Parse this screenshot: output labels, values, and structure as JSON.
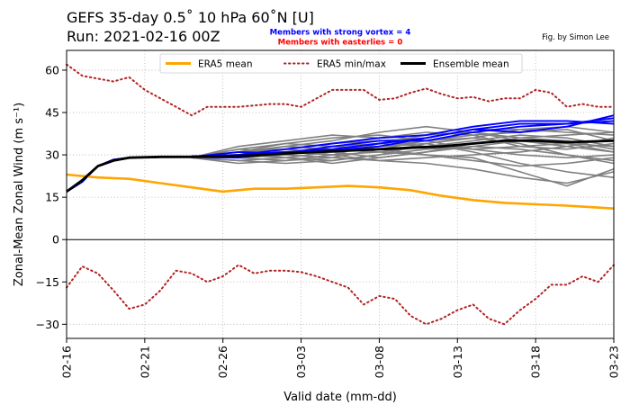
{
  "header": {
    "title_line1": "GEFS 35-day 0.5˚ 10 hPa 60˚N [U]",
    "title_line2": "Run: 2021-02-16 00Z",
    "strong_vortex_note": "Members with strong vortex = 4",
    "easterlies_note": "Members with easterlies = 0",
    "credit": "Fig. by Simon Lee"
  },
  "colors": {
    "era5_mean": "#ffa500",
    "era5_minmax": "#b22222",
    "ensemble_mean": "#000000",
    "strong_vortex_members": "#0000ff",
    "other_members": "#808080",
    "strong_vortex_note": "#0000ff",
    "easterlies_note": "#ff0000"
  },
  "chart_data": {
    "type": "line",
    "title": "GEFS 35-day 0.5˚ 10 hPa 60˚N [U]",
    "xlabel": "Valid date (mm-dd)",
    "ylabel": "Zonal-Mean Zonal Wind (m s⁻¹)",
    "x_start": "2021-02-16",
    "xlim": [
      "02-16",
      "03-23"
    ],
    "ylim": [
      -35,
      67
    ],
    "x_ticks": [
      "02-16",
      "02-21",
      "02-26",
      "03-03",
      "03-08",
      "03-13",
      "03-18",
      "03-23"
    ],
    "y_ticks": [
      -30,
      -15,
      0,
      15,
      30,
      45,
      60
    ],
    "grid": true,
    "legend_position": "top-center",
    "legend": [
      "ERA5 mean",
      "ERA5 min/max",
      "Ensemble mean"
    ],
    "series": [
      {
        "name": "ERA5 mean",
        "style": "solid",
        "x": [
          "02-16",
          "02-18",
          "02-20",
          "02-22",
          "02-24",
          "02-26",
          "02-28",
          "03-02",
          "03-04",
          "03-06",
          "03-08",
          "03-10",
          "03-12",
          "03-14",
          "03-16",
          "03-18",
          "03-20",
          "03-23"
        ],
        "y": [
          23,
          22,
          21.5,
          20,
          18.5,
          17,
          18,
          18,
          18.5,
          19,
          18.5,
          17.5,
          15.5,
          14,
          13,
          12.5,
          12,
          11
        ]
      },
      {
        "name": "ERA5 min/max",
        "style": "dotted",
        "x": [
          "02-16",
          "02-17",
          "02-18",
          "02-19",
          "02-20",
          "02-21",
          "02-22",
          "02-23",
          "02-24",
          "02-25",
          "02-26",
          "02-27",
          "02-28",
          "03-01",
          "03-02",
          "03-03",
          "03-04",
          "03-05",
          "03-06",
          "03-07",
          "03-08",
          "03-09",
          "03-10",
          "03-11",
          "03-12",
          "03-13",
          "03-14",
          "03-15",
          "03-16",
          "03-17",
          "03-18",
          "03-19",
          "03-20",
          "03-21",
          "03-22",
          "03-23"
        ],
        "y": [
          62,
          58,
          57,
          56,
          57.5,
          53,
          50,
          47,
          44,
          47,
          47,
          47,
          47.5,
          48,
          48,
          47,
          50,
          53,
          53,
          53,
          49.5,
          50,
          52,
          53.5,
          51.5,
          50,
          50.5,
          49,
          50,
          50,
          53,
          52,
          47,
          48,
          47,
          47
        ]
      },
      {
        "name": "ERA5 min/max",
        "style": "dotted",
        "x": [
          "02-16",
          "02-17",
          "02-18",
          "02-19",
          "02-20",
          "02-21",
          "02-22",
          "02-23",
          "02-24",
          "02-25",
          "02-26",
          "02-27",
          "02-28",
          "03-01",
          "03-02",
          "03-03",
          "03-04",
          "03-05",
          "03-06",
          "03-07",
          "03-08",
          "03-09",
          "03-10",
          "03-11",
          "03-12",
          "03-13",
          "03-14",
          "03-15",
          "03-16",
          "03-17",
          "03-18",
          "03-19",
          "03-20",
          "03-21",
          "03-22",
          "03-23"
        ],
        "y": [
          -17,
          -9.5,
          -12,
          -18,
          -24.5,
          -23,
          -18,
          -11,
          -12,
          -15,
          -13,
          -9,
          -12,
          -11,
          -11,
          -11.5,
          -13,
          -15,
          -17,
          -23,
          -20,
          -21,
          -27,
          -30,
          -28,
          -25,
          -23,
          -28,
          -30,
          -25,
          -21,
          -16,
          -16,
          -13,
          -15,
          -9
        ]
      },
      {
        "name": "Ensemble mean",
        "style": "solid",
        "x": [
          "02-16",
          "02-17",
          "02-18",
          "02-19",
          "02-20",
          "02-22",
          "02-24",
          "02-26",
          "02-28",
          "03-02",
          "03-04",
          "03-06",
          "03-08",
          "03-10",
          "03-12",
          "03-14",
          "03-16",
          "03-18",
          "03-20",
          "03-23"
        ],
        "y": [
          17,
          21,
          26,
          28,
          29,
          29.3,
          29.3,
          29.5,
          29.8,
          30.5,
          31,
          31.5,
          32,
          32.5,
          33,
          34,
          35,
          35,
          34.5,
          35
        ]
      }
    ],
    "member_start": {
      "x": [
        "02-16",
        "02-17",
        "02-18",
        "02-19",
        "02-20",
        "02-22",
        "02-24"
      ],
      "y": [
        17,
        20.5,
        26,
        28.3,
        29,
        29.2,
        29.2
      ]
    },
    "member_x": [
      "02-24",
      "02-27",
      "03-02",
      "03-05",
      "03-08",
      "03-11",
      "03-14",
      "03-17",
      "03-20",
      "03-23"
    ],
    "strong_vortex_members": [
      [
        29.3,
        31,
        30.5,
        33,
        35,
        35,
        38,
        40,
        41,
        43
      ],
      [
        29.5,
        30,
        32,
        34,
        36,
        37,
        40,
        42,
        42,
        41
      ],
      [
        29.2,
        29,
        31,
        32,
        34,
        36,
        39,
        38,
        40,
        44
      ],
      [
        29.4,
        30,
        31,
        31.5,
        33,
        36,
        39,
        41,
        41,
        42
      ]
    ],
    "other_members": [
      [
        29,
        32,
        34,
        36,
        37,
        35,
        32,
        30,
        29,
        30
      ],
      [
        29,
        29,
        30,
        29,
        28,
        27,
        25,
        22,
        20,
        24
      ],
      [
        29,
        30,
        33,
        35,
        38,
        40,
        38,
        35,
        33,
        31
      ],
      [
        29,
        28,
        27,
        28,
        30,
        32,
        33,
        32,
        30,
        28
      ],
      [
        29,
        31,
        29,
        27,
        29,
        31,
        34,
        36,
        37,
        38
      ],
      [
        29,
        33,
        35,
        37,
        36,
        38,
        37,
        33,
        32,
        34
      ],
      [
        29,
        28,
        29,
        31,
        33,
        34,
        31,
        27,
        24,
        22
      ],
      [
        29,
        30,
        31,
        30,
        31,
        33,
        35,
        37,
        36,
        33
      ],
      [
        29,
        31,
        34,
        33,
        32,
        30,
        28,
        26,
        27,
        29
      ],
      [
        29,
        29,
        28,
        29,
        32,
        35,
        36,
        34,
        30,
        27
      ],
      [
        29,
        30,
        32,
        34,
        35,
        36,
        39,
        39,
        38,
        37
      ],
      [
        29,
        32,
        31,
        30,
        28,
        29,
        30,
        31,
        33,
        36
      ],
      [
        29,
        27,
        28,
        30,
        34,
        37,
        38,
        36,
        35,
        32
      ],
      [
        29,
        30,
        30,
        32,
        31,
        30,
        29,
        24,
        19,
        25
      ],
      [
        29,
        31,
        33,
        32,
        33,
        35,
        37,
        38,
        39,
        35
      ],
      [
        29,
        29,
        31,
        33,
        34,
        33,
        32,
        33,
        34,
        31
      ],
      [
        29,
        30,
        29,
        28,
        30,
        34,
        36,
        39,
        40,
        38
      ],
      [
        29,
        31,
        32,
        31,
        29,
        31,
        33,
        35,
        34,
        33
      ]
    ]
  }
}
